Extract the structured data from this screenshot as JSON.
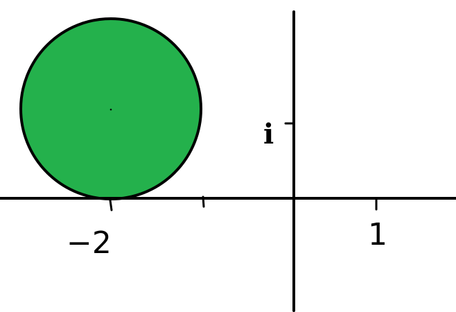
{
  "diagram": {
    "colors": {
      "disk_fill": "#24b14c",
      "stroke": "#000000",
      "background": "#ffffff"
    },
    "disk": {
      "center_real": -2,
      "center_imag": 1,
      "radius": 1
    },
    "labels": {
      "real_negative_two": "−2",
      "real_one": "1",
      "imag_unit": "i"
    }
  }
}
